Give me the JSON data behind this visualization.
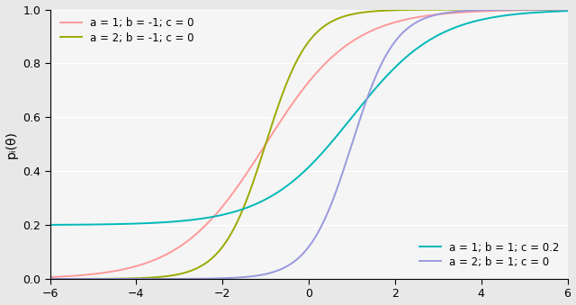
{
  "title": "",
  "xlabel": "",
  "ylabel": "pᵢ(θ)",
  "xlim": [
    -6,
    6
  ],
  "ylim": [
    0,
    1.0
  ],
  "xticks": [
    -6,
    -4,
    -2,
    0,
    2,
    4,
    6
  ],
  "ytick_values": [
    0.0,
    0.2,
    0.4,
    0.6,
    0.8,
    1.0
  ],
  "ytick_labels": [
    "0.0",
    "0.2",
    "0.4",
    "0.6",
    "0.8",
    "1.0"
  ],
  "curves": [
    {
      "a": 1,
      "b": -1,
      "c": 0,
      "color": "#FF9999",
      "label": "a = 1; b = -1; c = 0"
    },
    {
      "a": 2,
      "b": -1,
      "c": 0,
      "color": "#9aaa00",
      "label": "a = 2; b = -1; c = 0"
    },
    {
      "a": 1,
      "b": 1,
      "c": 0.2,
      "color": "#00b8b8",
      "label": "a = 1; b = 1; c = 0.2"
    },
    {
      "a": 2,
      "b": 1,
      "c": 0,
      "color": "#9999dd",
      "label": "a = 2; b = 1; c = 0"
    }
  ],
  "background_color": "#e8e8e8",
  "plot_bg_color": "#f5f5f5",
  "linewidth": 1.4,
  "fontsize_tick": 9,
  "fontsize_label": 10,
  "fontsize_legend": 8.5
}
